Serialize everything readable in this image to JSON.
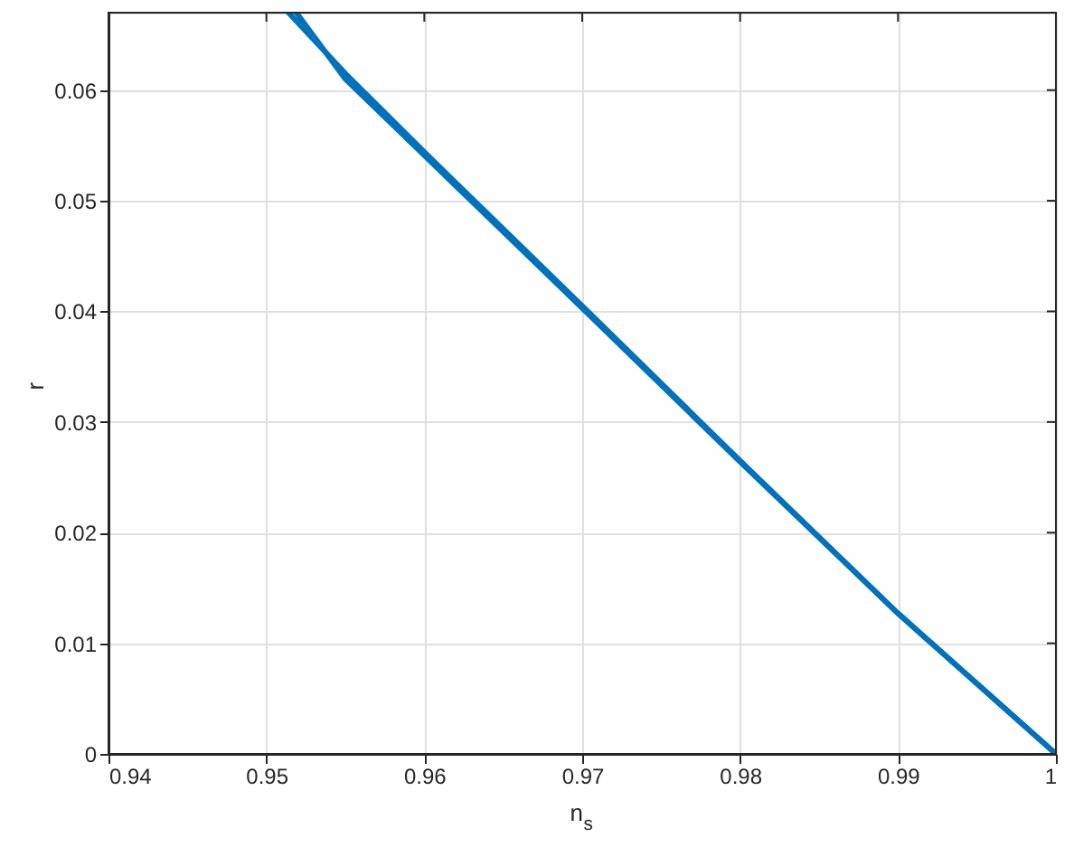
{
  "chart_data": {
    "type": "line",
    "xlabel": "n$_{s}$",
    "ylabel": "r",
    "series": [
      {
        "color": "#0072bd",
        "x": [
          1,
          0.99,
          0.98,
          0.97,
          0.96,
          0.955,
          0.9514
        ],
        "values": [
          0,
          0.0127,
          0.0265,
          0.0405,
          0.0544,
          0.0615,
          0.067
        ]
      },
      {
        "color": "#0072bd",
        "x": [
          1,
          0.99,
          0.98,
          0.97,
          0.96,
          0.955,
          0.9519
        ],
        "values": [
          0,
          0.0127,
          0.0264,
          0.0403,
          0.0541,
          0.061,
          0.067
        ]
      }
    ],
    "xlim": [
      0.94,
      1
    ],
    "xticks": [
      0.94,
      0.95,
      0.96,
      0.97,
      0.98,
      0.99,
      {
        "value": 1,
        "label": "1"
      }
    ],
    "ylim": [
      0,
      0.067
    ],
    "yticks": [
      0,
      0.01,
      0.02,
      0.03,
      0.04,
      0.05,
      0.06
    ],
    "grid": true,
    "marker": "none",
    "line_style": "solid"
  }
}
